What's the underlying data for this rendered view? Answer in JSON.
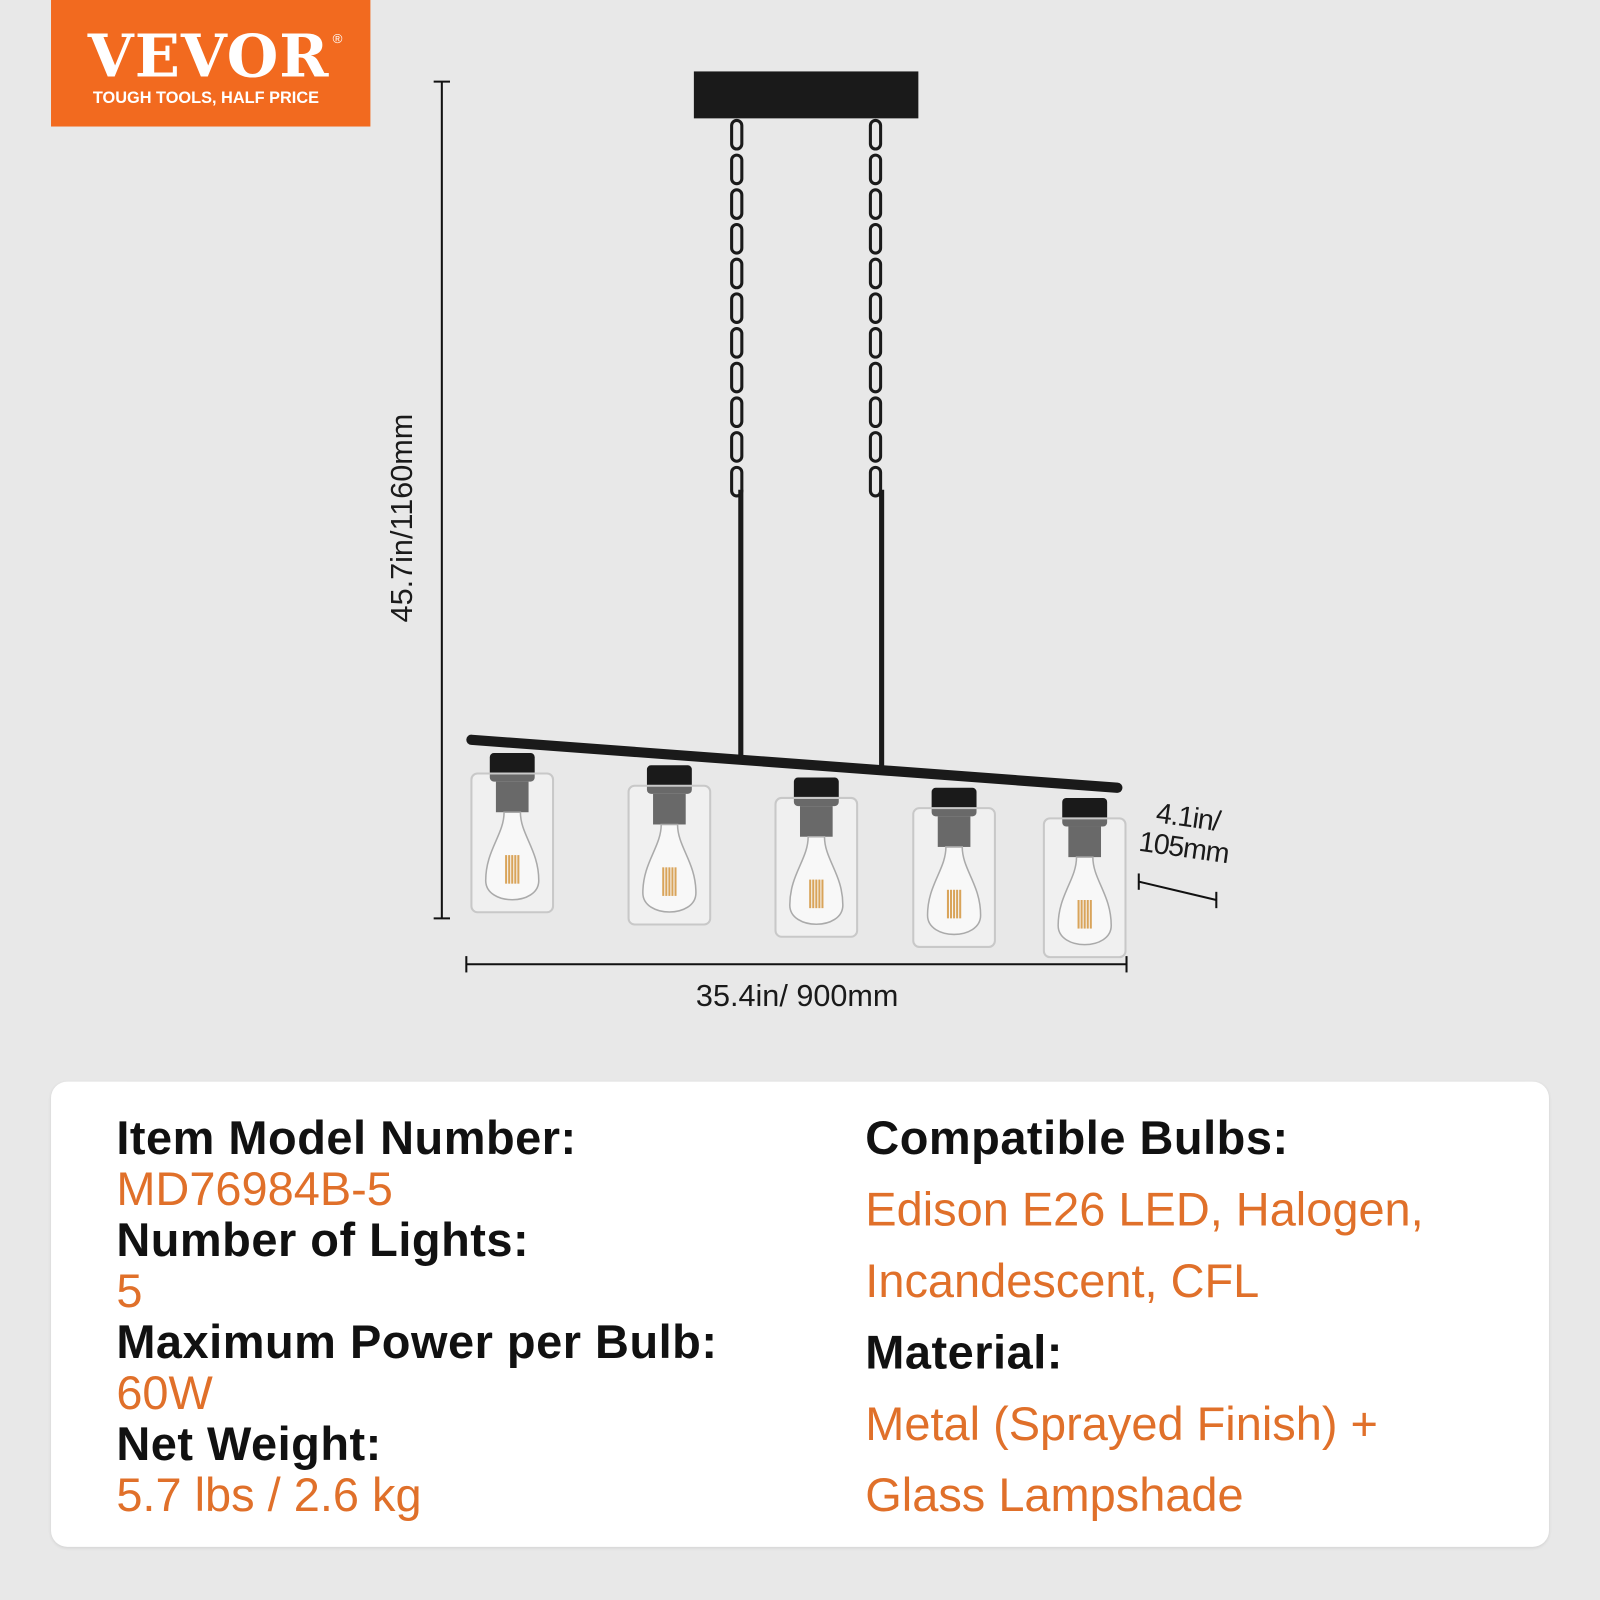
{
  "logo": {
    "brand": "VEVOR",
    "registered": "®",
    "tagline": "TOUGH TOOLS, HALF PRICE",
    "color": "#f26a1f"
  },
  "dimensions": {
    "height": "45.7in/1160mm",
    "width": "35.4in/ 900mm",
    "depth_line1": "4.1in/",
    "depth_line2": "105mm"
  },
  "product_image": {
    "lights": 5,
    "finish_color": "#1a1a1a"
  },
  "specs": {
    "accent_color": "#e0702a",
    "left": [
      {
        "label": "Item Model Number:",
        "value": "MD76984B-5"
      },
      {
        "label": "Number of Lights:",
        "value": "5"
      },
      {
        "label": "Maximum Power per Bulb:",
        "value": "60W"
      },
      {
        "label": "Net Weight:",
        "value": "5.7 lbs / 2.6 kg"
      }
    ],
    "right": [
      {
        "label": "Compatible Bulbs:",
        "value_lines": [
          "Edison E26 LED, Halogen,",
          "Incandescent, CFL"
        ]
      },
      {
        "label": "Material:",
        "value_lines": [
          "Metal (Sprayed Finish) +",
          "Glass Lampshade"
        ]
      }
    ]
  }
}
